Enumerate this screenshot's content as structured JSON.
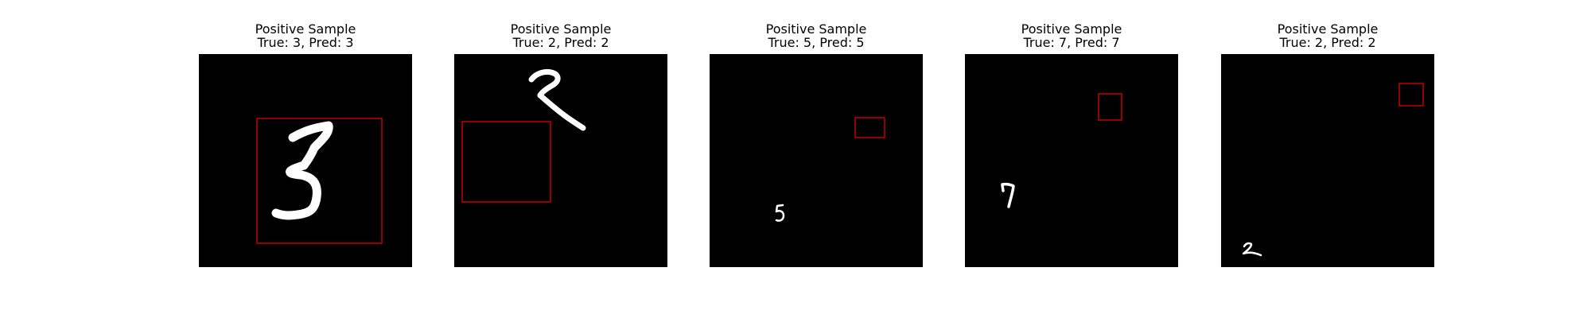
{
  "figure": {
    "panels": [
      {
        "title": "Positive Sample",
        "label": "True: 3, Pred: 3",
        "digit": "3"
      },
      {
        "title": "Positive Sample",
        "label": "True: 2, Pred: 2",
        "digit": "2"
      },
      {
        "title": "Positive Sample",
        "label": "True: 5, Pred: 5",
        "digit": "5"
      },
      {
        "title": "Positive Sample",
        "label": "True: 7, Pred: 7",
        "digit": "7"
      },
      {
        "title": "Positive Sample",
        "label": "True: 2, Pred: 2",
        "digit": "2"
      }
    ],
    "colors": {
      "image_background": "#000000",
      "digit": "#ffffff",
      "box": "#dd0000"
    }
  }
}
